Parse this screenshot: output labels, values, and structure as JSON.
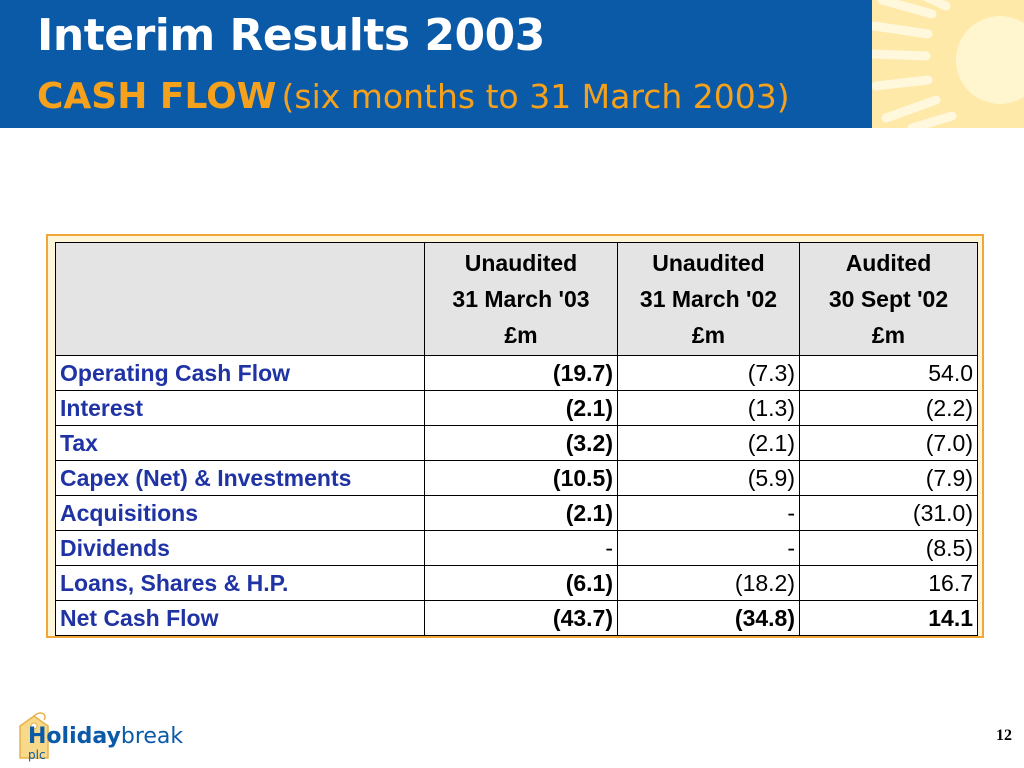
{
  "header": {
    "title": "Interim Results 2003",
    "subtitle_strong": "CASH FLOW",
    "subtitle_rest": "(six months to 31 March 2003)"
  },
  "table": {
    "columns": [
      {
        "lines": [
          "Unaudited",
          "31 March '03",
          "£m"
        ]
      },
      {
        "lines": [
          "Unaudited",
          "31 March '02",
          "£m"
        ]
      },
      {
        "lines": [
          "Audited",
          "30 Sept '02",
          "£m"
        ]
      }
    ],
    "rows": [
      {
        "label": "Operating Cash Flow",
        "values": [
          "(19.7)",
          "(7.3)",
          "54.0"
        ]
      },
      {
        "label": "Interest",
        "values": [
          "(2.1)",
          "(1.3)",
          "(2.2)"
        ]
      },
      {
        "label": "Tax",
        "values": [
          "(3.2)",
          "(2.1)",
          "(7.0)"
        ]
      },
      {
        "label": "Capex (Net) & Investments",
        "values": [
          "(10.5)",
          "(5.9)",
          "(7.9)"
        ]
      },
      {
        "label": "Acquisitions",
        "values": [
          "(2.1)",
          "-",
          "(31.0)"
        ]
      },
      {
        "label": "Dividends",
        "values": [
          "-",
          "-",
          "(8.5)"
        ]
      },
      {
        "label": "Loans, Shares & H.P.",
        "values": [
          "(6.1)",
          "(18.2)",
          "16.7"
        ]
      },
      {
        "label": "Net Cash Flow",
        "values": [
          "(43.7)",
          "(34.8)",
          "14.1"
        ]
      }
    ]
  },
  "logo": {
    "part1": "Holiday",
    "part2": "break",
    "sub": "plc"
  },
  "page_number": "12",
  "colors": {
    "header_bg": "#0b5aa8",
    "accent": "#f6a11b",
    "label_blue": "#1f33a4"
  }
}
